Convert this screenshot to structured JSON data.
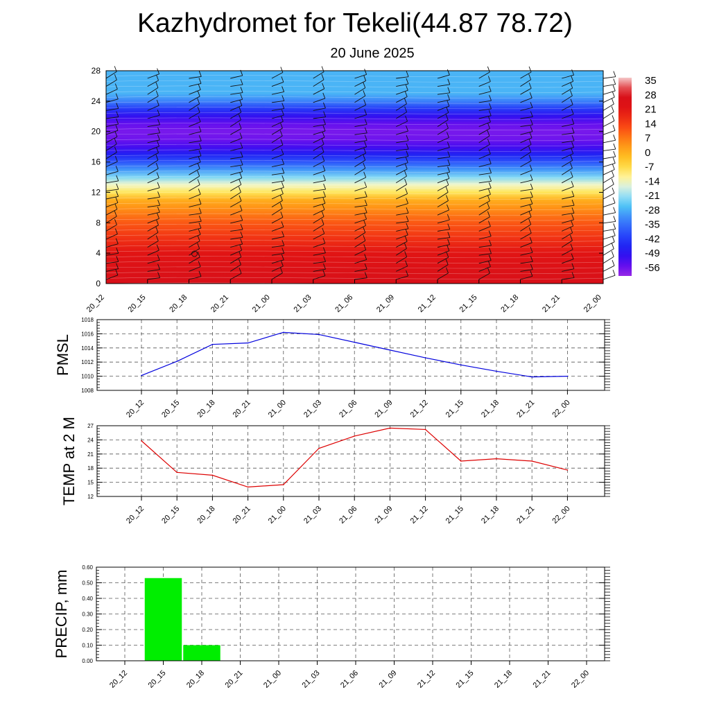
{
  "header": {
    "title": "Kazhydromet for Tekeli(44.87 78.72)",
    "subtitle": "20 June 2025"
  },
  "chart_data": [
    {
      "type": "heatmap",
      "name": "temperature-cross-section",
      "x_ticks": [
        "20_12",
        "20_15",
        "20_18",
        "20_21",
        "21_00",
        "21_03",
        "21_06",
        "21_09",
        "21_12",
        "21_15",
        "21_18",
        "21_21",
        "22_00"
      ],
      "y_ticks": [
        "0",
        "4",
        "8",
        "12",
        "16",
        "20",
        "24",
        "28"
      ],
      "ylim": [
        0,
        28
      ],
      "colorbar_labels": [
        "35",
        "28",
        "21",
        "14",
        "7",
        "0",
        "-7",
        "-14",
        "-21",
        "-28",
        "-35",
        "-42",
        "-49",
        "-56"
      ],
      "colorbar_range": [
        -60,
        38
      ],
      "levels_y": [
        0,
        2,
        4,
        6,
        8,
        10,
        11,
        12,
        13,
        14,
        15,
        16,
        17,
        18,
        19,
        20,
        21,
        22,
        23,
        24,
        25,
        28
      ],
      "levels_value": [
        29,
        26,
        22,
        17,
        12,
        5,
        1,
        -8,
        -14,
        -22,
        -30,
        -38,
        -46,
        -52,
        -56,
        -57,
        -55,
        -50,
        -42,
        -32,
        -27,
        -27
      ],
      "wind_barbs": true
    },
    {
      "type": "line",
      "ylabel": "PMSL",
      "categories": [
        "20_12",
        "20_15",
        "20_18",
        "20_21",
        "21_00",
        "21_03",
        "21_06",
        "21_09",
        "21_12",
        "21_15",
        "21_18",
        "21_21",
        "22_00"
      ],
      "y_ticks": [
        "1008",
        "1010",
        "1012",
        "1014",
        "1016",
        "1018"
      ],
      "ylim": [
        1008,
        1018
      ],
      "grid": true,
      "color": "#0000dd",
      "values": [
        1010.1,
        1012.1,
        1014.5,
        1014.7,
        1016.2,
        1015.9,
        1014.8,
        1013.7,
        1012.6,
        1011.6,
        1010.7,
        1009.9,
        1010.0
      ]
    },
    {
      "type": "line",
      "ylabel": "TEMP at 2 M",
      "categories": [
        "20_12",
        "20_15",
        "20_18",
        "20_21",
        "21_00",
        "21_03",
        "21_06",
        "21_09",
        "21_12",
        "21_15",
        "21_18",
        "21_21",
        "22_00"
      ],
      "y_ticks": [
        "12",
        "15",
        "18",
        "21",
        "24",
        "27"
      ],
      "ylim": [
        12,
        27
      ],
      "grid": true,
      "color": "#dd0000",
      "values": [
        23.8,
        17.1,
        16.5,
        14.0,
        14.5,
        22.2,
        24.8,
        26.5,
        26.2,
        19.5,
        20.0,
        19.5,
        17.6
      ]
    },
    {
      "type": "bar",
      "ylabel": "PRECIP, mm",
      "categories": [
        "20_12",
        "20_15",
        "20_18",
        "20_21",
        "21_00",
        "21_03",
        "21_06",
        "21_09",
        "21_12",
        "21_15",
        "21_18",
        "21_21",
        "22_00"
      ],
      "y_ticks": [
        "0.00",
        "0.10",
        "0.20",
        "0.30",
        "0.40",
        "0.50",
        "0.60"
      ],
      "ylim": [
        0,
        0.6
      ],
      "grid": true,
      "color": "#00ee00",
      "values": [
        0,
        0.53,
        0.1,
        0,
        0,
        0,
        0,
        0,
        0,
        0,
        0,
        0,
        0
      ]
    }
  ]
}
